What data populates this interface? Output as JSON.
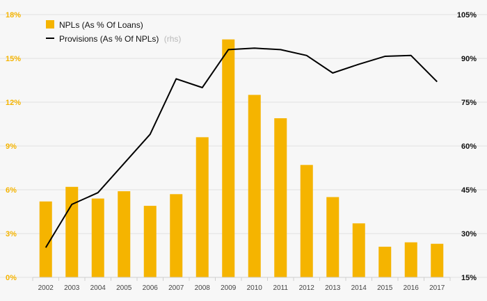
{
  "chart_data": {
    "type": "bar",
    "categories": [
      "2002",
      "2003",
      "2004",
      "2005",
      "2006",
      "2007",
      "2008",
      "2009",
      "2010",
      "2011",
      "2012",
      "2013",
      "2014",
      "2015",
      "2016",
      "2017"
    ],
    "series": [
      {
        "name": "NPLs (As % Of Loans)",
        "type": "bar",
        "axis": "left",
        "color": "#f5b400",
        "values": [
          5.2,
          6.2,
          5.4,
          5.9,
          4.9,
          5.7,
          9.6,
          16.3,
          12.5,
          10.9,
          7.7,
          5.5,
          3.7,
          2.1,
          2.4,
          2.3
        ]
      },
      {
        "name": "Provisions (As % Of NPLs)",
        "legend_note": "(rhs)",
        "type": "line",
        "axis": "right",
        "color": "#000000",
        "values": [
          25.2,
          40.0,
          44.0,
          54.0,
          64.0,
          83.0,
          80.0,
          93.0,
          93.5,
          93.0,
          91.0,
          85.0,
          88.0,
          90.7,
          91.0,
          82.0
        ]
      }
    ],
    "left_axis": {
      "ylim": [
        0,
        18
      ],
      "ticks": [
        0,
        3,
        6,
        9,
        12,
        15,
        18
      ],
      "tick_labels": [
        "0%",
        "3%",
        "6%",
        "9%",
        "12%",
        "15%",
        "18%"
      ],
      "color": "#f5b400"
    },
    "right_axis": {
      "ylim": [
        15,
        105
      ],
      "ticks": [
        15,
        30,
        45,
        60,
        75,
        90,
        105
      ],
      "tick_labels": [
        "15%",
        "30%",
        "45%",
        "60%",
        "75%",
        "90%",
        "105%"
      ],
      "color": "#111111"
    },
    "grid": true,
    "legend_position": "top-left",
    "title": "",
    "xlabel": "",
    "ylabel": ""
  }
}
